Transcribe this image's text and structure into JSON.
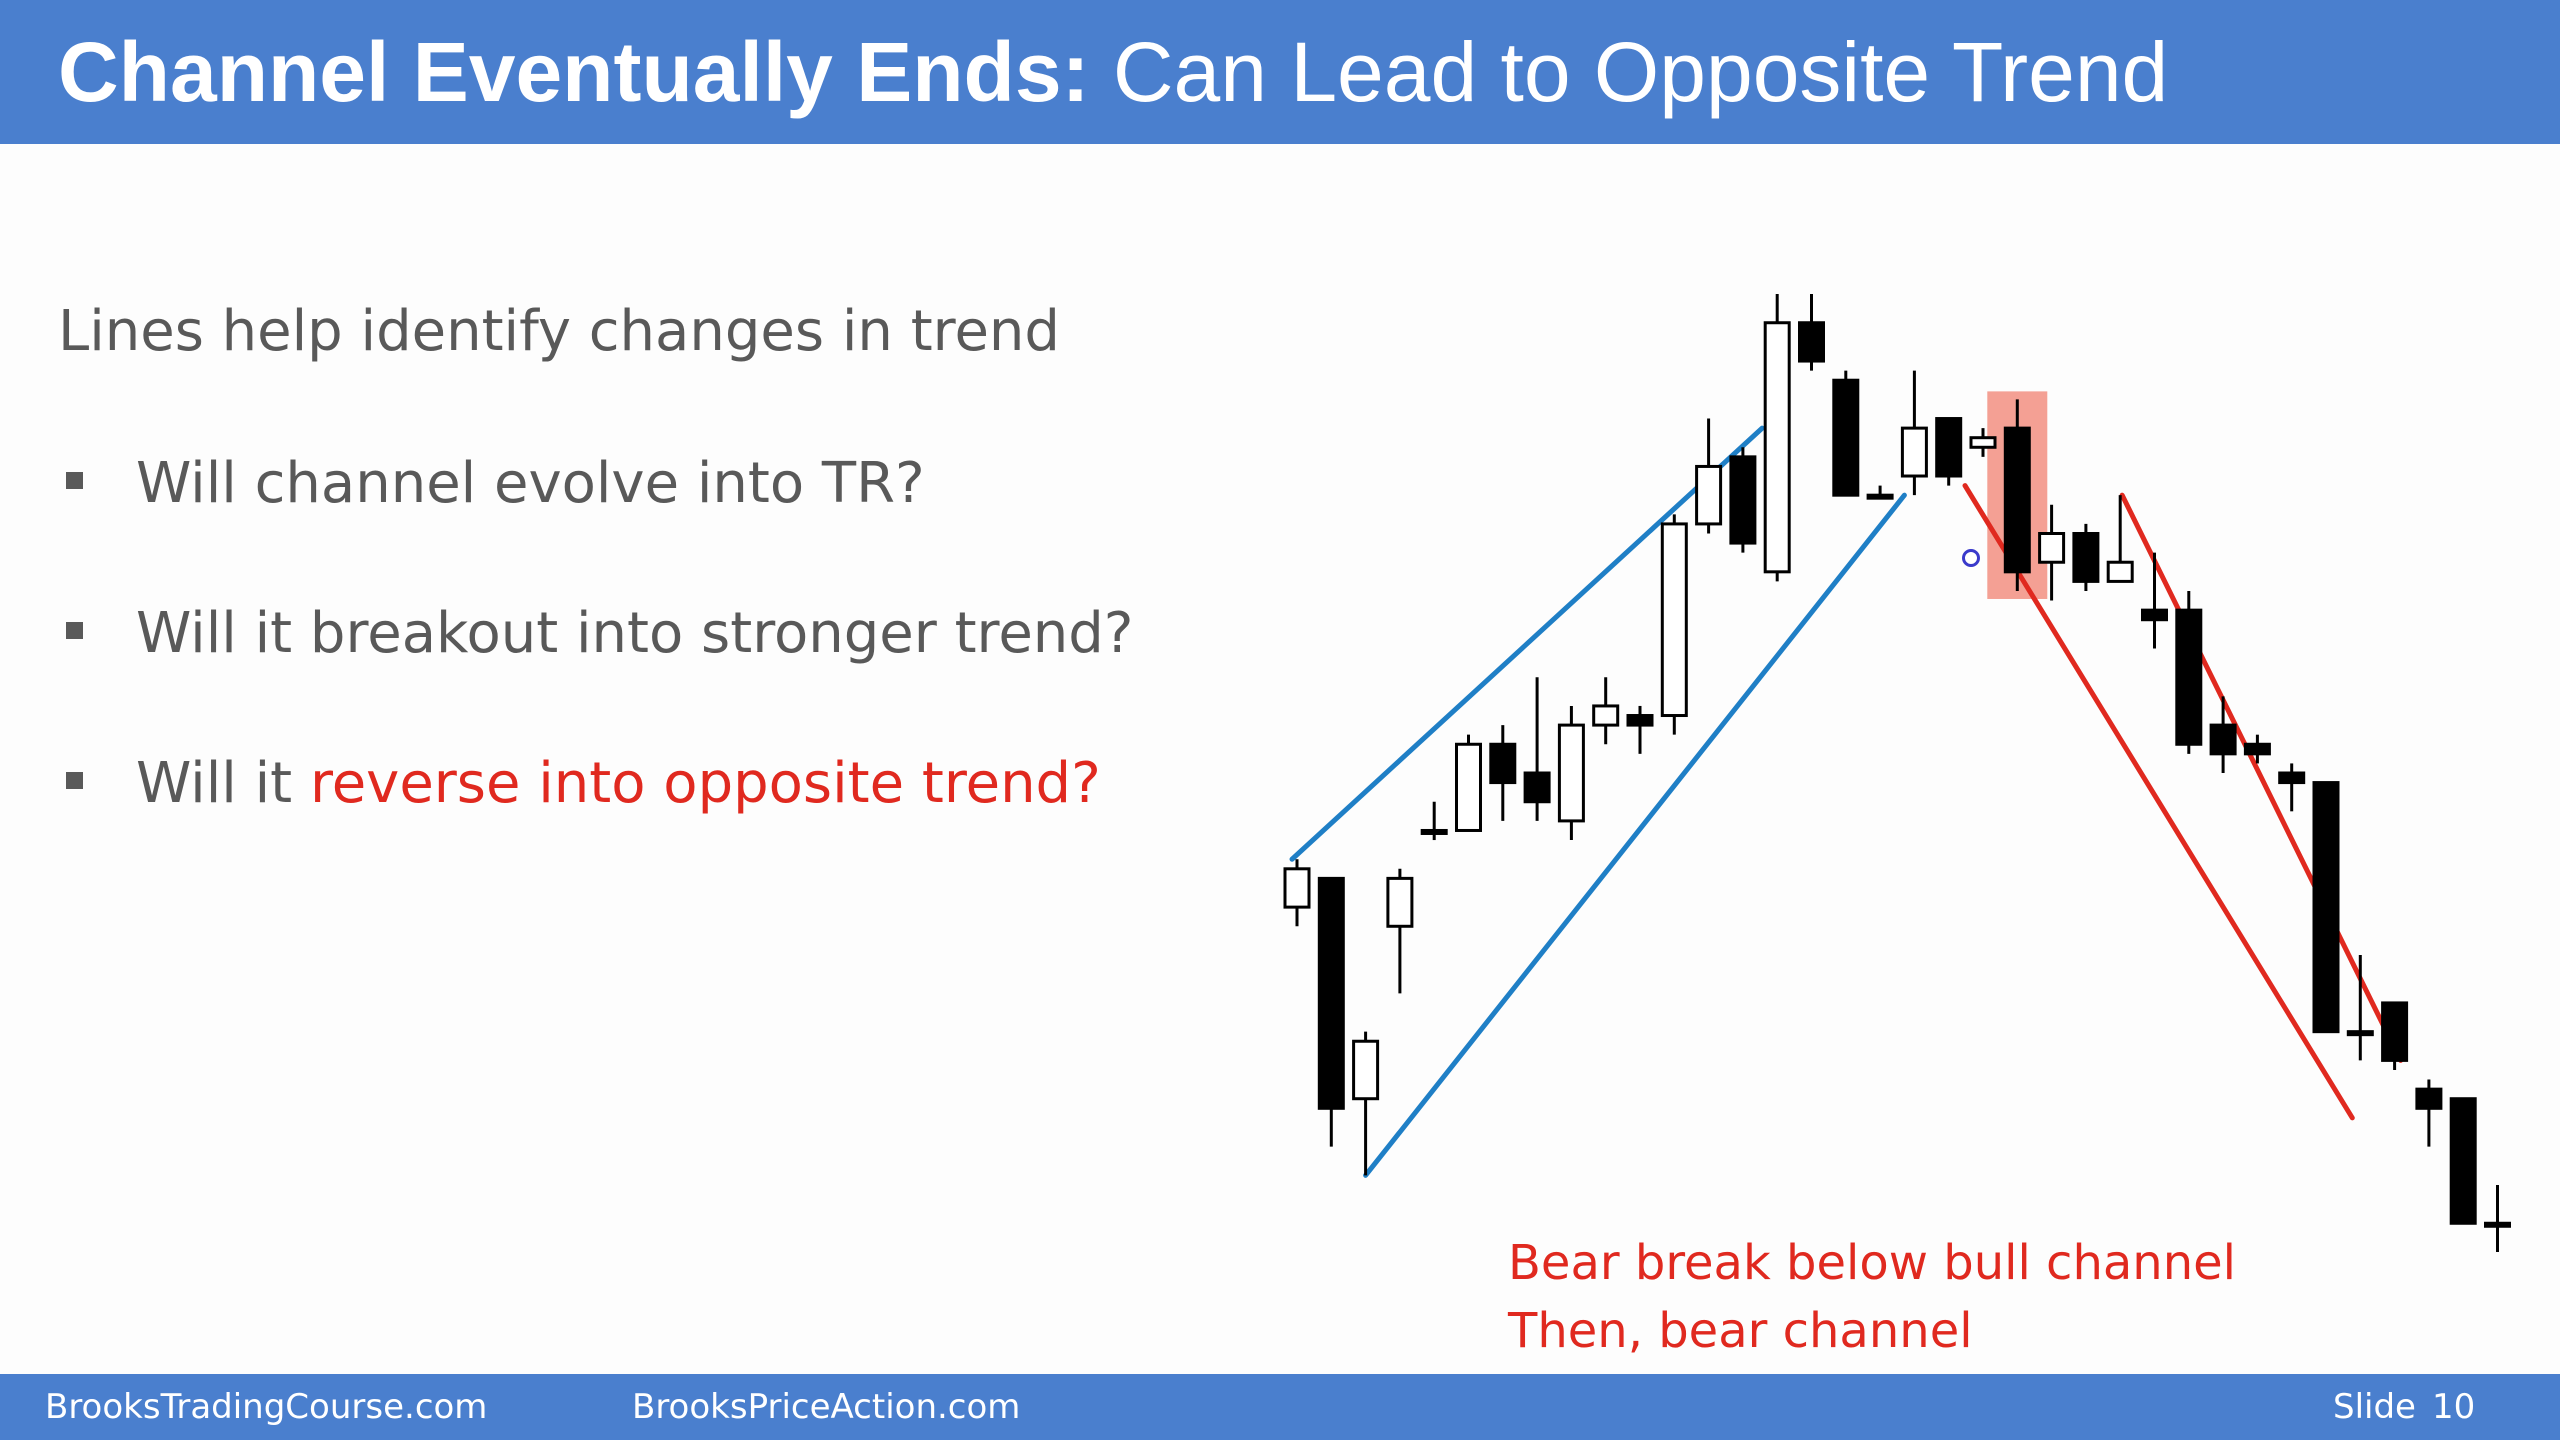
{
  "slide": {
    "title_bold": "Channel Eventually Ends:",
    "title_rest": " Can Lead to Opposite Trend",
    "subtitle": "Lines help identify changes in trend",
    "bullets": [
      {
        "text": "Will channel evolve into TR?"
      },
      {
        "text": "Will it breakout into stronger trend?"
      },
      {
        "text": "Will it ",
        "highlight": "reverse into opposite trend?"
      }
    ],
    "annotation": {
      "line1": "Bear break below bull channel",
      "line2": "Then, bear channel"
    }
  },
  "footer": {
    "site1": "BrooksTradingCourse.com",
    "site2": "BrooksPriceAction.com",
    "slide_label": "Slide",
    "slide_number": "10"
  },
  "colors": {
    "header_bg": "#4a7fce",
    "bull_channel_line": "#1f7fc6",
    "bear_channel_line": "#e0291f",
    "highlight_box": "#f08070",
    "text_gray": "#595959",
    "accent_red": "#e0291f"
  },
  "chart_data": {
    "type": "candlestick",
    "note_units": "price units (0 = bottom, 100 = top of plotted range)",
    "ylim": [
      0,
      100
    ],
    "candles": [
      {
        "o": 36,
        "c": 40,
        "h": 41,
        "l": 34,
        "bull": true
      },
      {
        "o": 39,
        "c": 15,
        "h": 39,
        "l": 11,
        "bull": false
      },
      {
        "o": 16,
        "c": 22,
        "h": 23,
        "l": 8,
        "bull": true
      },
      {
        "o": 34,
        "c": 39,
        "h": 40,
        "l": 27,
        "bull": true
      },
      {
        "o": 44,
        "c": 44,
        "h": 47,
        "l": 43,
        "bull": true
      },
      {
        "o": 44,
        "c": 53,
        "h": 54,
        "l": 44,
        "bull": true
      },
      {
        "o": 53,
        "c": 49,
        "h": 55,
        "l": 45,
        "bull": false
      },
      {
        "o": 50,
        "c": 47,
        "h": 60,
        "l": 45,
        "bull": false
      },
      {
        "o": 45,
        "c": 55,
        "h": 57,
        "l": 43,
        "bull": true
      },
      {
        "o": 55,
        "c": 57,
        "h": 60,
        "l": 53,
        "bull": true
      },
      {
        "o": 56,
        "c": 55,
        "h": 57,
        "l": 52,
        "bull": false
      },
      {
        "o": 56,
        "c": 76,
        "h": 77,
        "l": 54,
        "bull": true
      },
      {
        "o": 76,
        "c": 82,
        "h": 87,
        "l": 75,
        "bull": true
      },
      {
        "o": 83,
        "c": 74,
        "h": 84,
        "l": 73,
        "bull": false
      },
      {
        "o": 71,
        "c": 97,
        "h": 100,
        "l": 70,
        "bull": true
      },
      {
        "o": 97,
        "c": 93,
        "h": 100,
        "l": 92,
        "bull": false
      },
      {
        "o": 91,
        "c": 79,
        "h": 92,
        "l": 79,
        "bull": false
      },
      {
        "o": 79,
        "c": 79,
        "h": 80,
        "l": 79,
        "bull": true
      },
      {
        "o": 81,
        "c": 86,
        "h": 92,
        "l": 79,
        "bull": true
      },
      {
        "o": 87,
        "c": 81,
        "h": 87,
        "l": 80,
        "bull": false
      },
      {
        "o": 84,
        "c": 85,
        "h": 86,
        "l": 83,
        "bull": true
      },
      {
        "o": 86,
        "c": 71,
        "h": 89,
        "l": 69,
        "bull": false
      },
      {
        "o": 72,
        "c": 75,
        "h": 78,
        "l": 68,
        "bull": true
      },
      {
        "o": 75,
        "c": 70,
        "h": 76,
        "l": 69,
        "bull": false
      },
      {
        "o": 70,
        "c": 72,
        "h": 79,
        "l": 70,
        "bull": true
      },
      {
        "o": 67,
        "c": 66,
        "h": 73,
        "l": 63,
        "bull": false
      },
      {
        "o": 67,
        "c": 53,
        "h": 69,
        "l": 52,
        "bull": false
      },
      {
        "o": 55,
        "c": 52,
        "h": 58,
        "l": 50,
        "bull": false
      },
      {
        "o": 53,
        "c": 52,
        "h": 54,
        "l": 51,
        "bull": false
      },
      {
        "o": 50,
        "c": 49,
        "h": 51,
        "l": 46,
        "bull": false
      },
      {
        "o": 49,
        "c": 23,
        "h": 49,
        "l": 23,
        "bull": false
      },
      {
        "o": 23,
        "c": 23,
        "h": 31,
        "l": 20,
        "bull": false
      },
      {
        "o": 26,
        "c": 20,
        "h": 26,
        "l": 19,
        "bull": false
      },
      {
        "o": 17,
        "c": 15,
        "h": 18,
        "l": 11,
        "bull": false
      },
      {
        "o": 16,
        "c": 3,
        "h": 16,
        "l": 3,
        "bull": false
      },
      {
        "o": 3,
        "c": 3,
        "h": 7,
        "l": 0,
        "bull": false
      }
    ],
    "highlight_candle_index": 21
  }
}
